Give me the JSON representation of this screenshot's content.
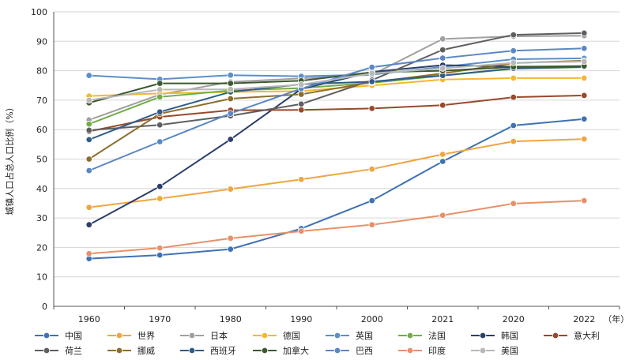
{
  "chart_data": {
    "type": "line",
    "ylabel": "城镇人口占总人口比例（%）",
    "x_unit": "（年）",
    "ylim": [
      0,
      100
    ],
    "yticks": [
      0,
      10,
      20,
      30,
      40,
      50,
      60,
      70,
      80,
      90,
      100
    ],
    "categories": [
      "1960",
      "1970",
      "1980",
      "1990",
      "2000",
      "2021",
      "2020",
      "2022"
    ],
    "grid": "horizontal",
    "legend_position": "bottom",
    "series": [
      {
        "name": "中国",
        "color": "#3f72b3",
        "values": [
          16.2,
          17.4,
          19.4,
          26.4,
          35.9,
          49.2,
          61.4,
          63.6
        ]
      },
      {
        "name": "世界",
        "color": "#eea63e",
        "values": [
          33.6,
          36.6,
          39.8,
          43.1,
          46.6,
          51.6,
          56.0,
          56.8
        ]
      },
      {
        "name": "日本",
        "color": "#a0a0a0",
        "values": [
          63.3,
          71.9,
          76.2,
          77.4,
          78.6,
          90.8,
          91.7,
          91.9
        ]
      },
      {
        "name": "德国",
        "color": "#f5b731",
        "values": [
          71.4,
          72.3,
          72.8,
          73.1,
          75.0,
          77.0,
          77.5,
          77.5
        ]
      },
      {
        "name": "英国",
        "color": "#5b8fc9",
        "values": [
          78.4,
          77.1,
          78.5,
          78.1,
          78.7,
          81.3,
          83.9,
          84.2
        ]
      },
      {
        "name": "法国",
        "color": "#70ad47",
        "values": [
          61.9,
          71.1,
          73.3,
          74.1,
          75.9,
          78.3,
          80.7,
          81.2
        ]
      },
      {
        "name": "韩国",
        "color": "#2b3f6b",
        "values": [
          27.7,
          40.7,
          56.7,
          73.8,
          79.6,
          81.9,
          81.4,
          81.4
        ]
      },
      {
        "name": "意大利",
        "color": "#99492a",
        "values": [
          59.4,
          64.3,
          66.6,
          66.7,
          67.2,
          68.3,
          71.0,
          71.6
        ]
      },
      {
        "name": "荷兰",
        "color": "#5f5f5f",
        "values": [
          59.8,
          61.6,
          64.7,
          68.7,
          76.8,
          87.1,
          92.2,
          92.8
        ]
      },
      {
        "name": "挪威",
        "color": "#8c6d2c",
        "values": [
          50.0,
          65.4,
          70.5,
          72.0,
          76.1,
          79.1,
          82.6,
          83.4
        ]
      },
      {
        "name": "西班牙",
        "color": "#2f5d8a",
        "values": [
          56.6,
          66.0,
          72.8,
          75.4,
          76.3,
          78.4,
          80.8,
          81.3
        ]
      },
      {
        "name": "加拿大",
        "color": "#3c5a2e",
        "values": [
          69.1,
          75.7,
          75.7,
          76.6,
          79.5,
          80.0,
          81.3,
          81.6
        ]
      },
      {
        "name": "巴西",
        "color": "#5a87c6",
        "values": [
          46.1,
          55.9,
          65.5,
          73.9,
          81.2,
          84.3,
          86.8,
          87.6
        ]
      },
      {
        "name": "印度",
        "color": "#e89067",
        "values": [
          17.9,
          19.8,
          23.1,
          25.5,
          27.7,
          30.9,
          34.9,
          35.9
        ]
      },
      {
        "name": "美国",
        "color": "#b8b8b8",
        "values": [
          70.0,
          73.6,
          73.7,
          75.3,
          79.1,
          80.8,
          82.7,
          83.1
        ]
      }
    ]
  }
}
